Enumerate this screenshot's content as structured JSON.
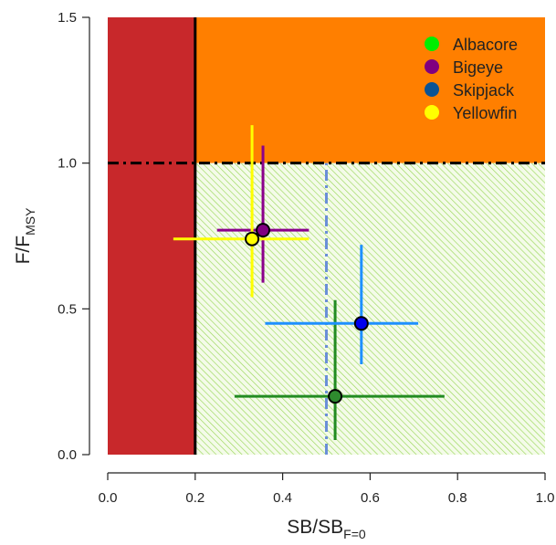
{
  "chart_data": {
    "type": "scatter",
    "xlim": [
      0,
      1
    ],
    "ylim": [
      0,
      1.5
    ],
    "xticks": [
      "0.0",
      "0.2",
      "0.4",
      "0.6",
      "0.8",
      "1.0"
    ],
    "yticks": [
      "0.0",
      "0.5",
      "1.0",
      "1.5"
    ],
    "xlabel": {
      "main": "SB/SB",
      "sub": "F=0"
    },
    "ylabel": {
      "main": "F/F",
      "sub": "MSY"
    },
    "reference_lines": {
      "limit_reference_point_x": 0.2,
      "target_x": 0.5,
      "f_msy_y": 1.0
    },
    "regions": [
      {
        "name": "overfished",
        "xmin": 0,
        "xmax": 0.2,
        "ymin": 0,
        "ymax": 1.5,
        "color": "#c8282b"
      },
      {
        "name": "overfishing",
        "xmin": 0.2,
        "xmax": 1.0,
        "ymin": 1.0,
        "ymax": 1.5,
        "color": "#ff7f00"
      },
      {
        "name": "healthy",
        "xmin": 0.2,
        "xmax": 1.0,
        "ymin": 0,
        "ymax": 1.0,
        "color": "#a9e36a",
        "pattern": "hatched"
      }
    ],
    "series": [
      {
        "name": "Albacore",
        "legend_color": "#00ee00",
        "point_color": "#2e8b2e",
        "line_color": "#228b22",
        "x": 0.52,
        "y": 0.2,
        "x_low": 0.29,
        "x_high": 0.77,
        "y_low": 0.05,
        "y_high": 0.53
      },
      {
        "name": "Bigeye",
        "legend_color": "#800080",
        "point_color": "#800080",
        "line_color": "#8b008b",
        "x": 0.355,
        "y": 0.77,
        "x_low": 0.25,
        "x_high": 0.46,
        "y_low": 0.59,
        "y_high": 1.06
      },
      {
        "name": "Skipjack",
        "legend_color": "#0b5394",
        "point_color": "#0000ee",
        "line_color": "#1e90ff",
        "x": 0.58,
        "y": 0.45,
        "x_low": 0.36,
        "x_high": 0.71,
        "y_low": 0.31,
        "y_high": 0.72
      },
      {
        "name": "Yellowfin",
        "legend_color": "#ffff00",
        "point_color": "#ffff00",
        "line_color": "#ffff00",
        "x": 0.33,
        "y": 0.74,
        "x_low": 0.15,
        "x_high": 0.46,
        "y_low": 0.54,
        "y_high": 1.13
      }
    ],
    "legend_position": "top-right",
    "grid": false
  }
}
